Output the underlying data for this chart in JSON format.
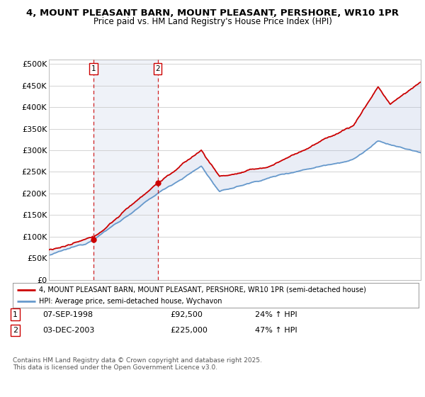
{
  "title": "4, MOUNT PLEASANT BARN, MOUNT PLEASANT, PERSHORE, WR10 1PR",
  "subtitle": "Price paid vs. HM Land Registry's House Price Index (HPI)",
  "ylabel_ticks": [
    "£0",
    "£50K",
    "£100K",
    "£150K",
    "£200K",
    "£250K",
    "£300K",
    "£350K",
    "£400K",
    "£450K",
    "£500K"
  ],
  "ytick_values": [
    0,
    50000,
    100000,
    150000,
    200000,
    250000,
    300000,
    350000,
    400000,
    450000,
    500000
  ],
  "sale1_year": 1998.67,
  "sale1_price": 92500,
  "sale2_year": 2003.92,
  "sale2_price": 225000,
  "legend_property": "4, MOUNT PLEASANT BARN, MOUNT PLEASANT, PERSHORE, WR10 1PR (semi-detached house)",
  "legend_hpi": "HPI: Average price, semi-detached house, Wychavon",
  "footer": "Contains HM Land Registry data © Crown copyright and database right 2025.\nThis data is licensed under the Open Government Licence v3.0.",
  "property_color": "#cc0000",
  "hpi_color": "#6699cc",
  "shade_color": "#aabbdd",
  "background_color": "#ffffff",
  "grid_color": "#cccccc",
  "sale_color": "#cc0000",
  "xmin": 1995,
  "xmax": 2025.5,
  "ymin": 0,
  "ymax": 510000
}
